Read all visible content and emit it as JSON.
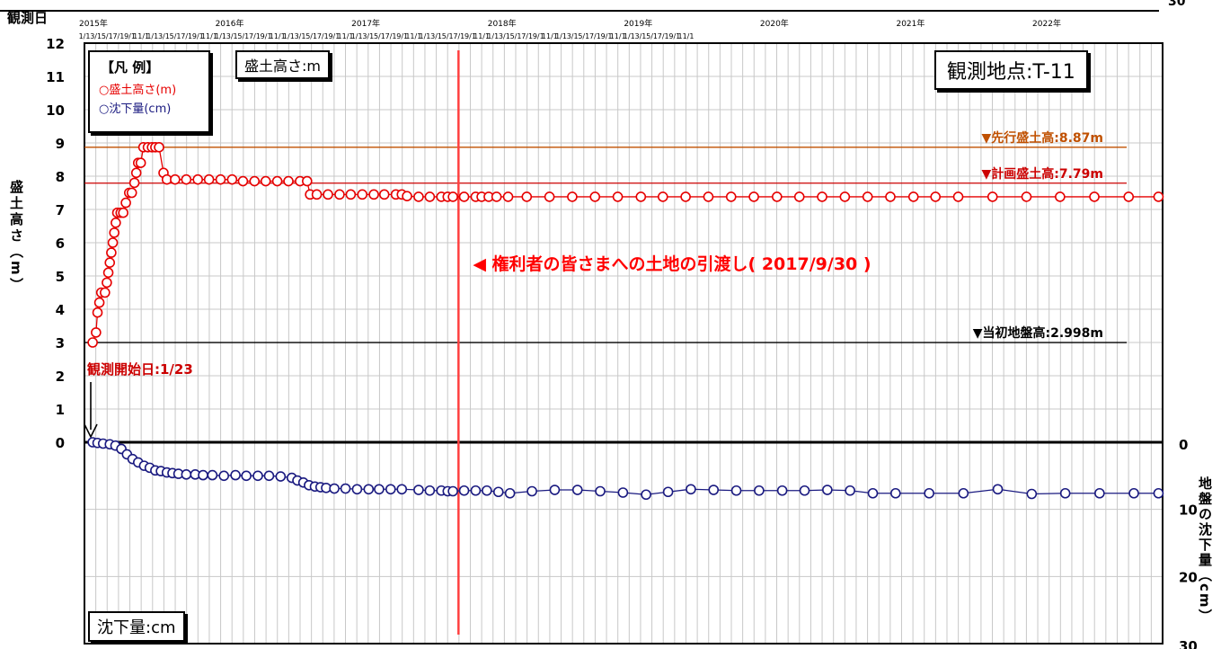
{
  "chart_data": {
    "type": "line",
    "top_axis": {
      "label": "観測日",
      "years": [
        "2015年",
        "2016年",
        "2017年",
        "2018年",
        "2019年",
        "2020年",
        "2021年",
        "2022年"
      ],
      "month_ticks": "1/1 3/1 5/1 7/1 9/1 11/1 1/1 3/1 5/1 7/1 9/1 11/1 1/1 3/1 5/1 7/1 9/1 11/1 1/1 3/1 5/1 7/1 9/1 11/1 1/1 3/1 5/1 7/1 9/1 11/1 1/1 3/1 5/1 7/1 9/1 11/1 1/1 3/1 5/1 7/1 9/1 11/1 1/1 3/1 5/1 7/1 9/1 11/1 1/1 3/1 5/1 7/1 9/1 11/1",
      "range": [
        "2015-01-01",
        "2022-12-01"
      ]
    },
    "left_axis": {
      "label": "盛土高さ（m）",
      "ylim": [
        0,
        12
      ],
      "ticks": [
        "0",
        "1",
        "2",
        "3",
        "4",
        "5",
        "6",
        "7",
        "8",
        "9",
        "10",
        "11",
        "12"
      ]
    },
    "right_axis": {
      "label": "地盤の沈下量（cm）",
      "ylim": [
        0,
        30
      ],
      "ticks": [
        "0",
        "10",
        "20",
        "30"
      ]
    },
    "grid": true,
    "legend": {
      "title": "【凡 例】",
      "position": "top-left",
      "items": [
        {
          "label": "○盛土高さ(m)",
          "color": "#e60000"
        },
        {
          "label": "○沈下量(cm)",
          "color": "#1a1a80"
        }
      ]
    },
    "panel_titles": {
      "fill": "盛土高さ:m",
      "settlement": "沈下量:cm"
    },
    "site": "観測地点:T-11",
    "reference_lines": [
      {
        "label": "▼先行盛土高:8.87m",
        "value": 8.87,
        "color": "#c05000"
      },
      {
        "label": "▼計画盛土高:7.79m",
        "value": 7.79,
        "color": "#cc0000"
      },
      {
        "label": "▼当初地盤高:2.998m",
        "value": 2.998,
        "color": "#000000"
      }
    ],
    "annotations": {
      "start": "観測開始日:1/23",
      "handover": "◀ 権利者の皆さまへの土地の引渡し( 2017/9/30 )",
      "handover_date": "2017-09-30"
    },
    "series": [
      {
        "name": "盛土高さ(m)",
        "color": "#e60000",
        "points": [
          [
            "2015-01-23",
            3.0
          ],
          [
            "2015-02-01",
            3.3
          ],
          [
            "2015-02-05",
            3.9
          ],
          [
            "2015-02-10",
            4.2
          ],
          [
            "2015-02-15",
            4.5
          ],
          [
            "2015-02-25",
            4.5
          ],
          [
            "2015-03-02",
            4.8
          ],
          [
            "2015-03-06",
            5.1
          ],
          [
            "2015-03-10",
            5.4
          ],
          [
            "2015-03-14",
            5.7
          ],
          [
            "2015-03-18",
            6.0
          ],
          [
            "2015-03-22",
            6.3
          ],
          [
            "2015-03-26",
            6.6
          ],
          [
            "2015-03-30",
            6.9
          ],
          [
            "2015-04-08",
            6.9
          ],
          [
            "2015-04-15",
            6.9
          ],
          [
            "2015-04-22",
            7.2
          ],
          [
            "2015-05-01",
            7.5
          ],
          [
            "2015-05-08",
            7.5
          ],
          [
            "2015-05-15",
            7.8
          ],
          [
            "2015-05-20",
            8.1
          ],
          [
            "2015-05-25",
            8.4
          ],
          [
            "2015-06-01",
            8.4
          ],
          [
            "2015-06-08",
            8.87
          ],
          [
            "2015-06-20",
            8.87
          ],
          [
            "2015-07-01",
            8.87
          ],
          [
            "2015-07-10",
            8.87
          ],
          [
            "2015-07-20",
            8.87
          ],
          [
            "2015-08-01",
            8.1
          ],
          [
            "2015-08-10",
            7.9
          ],
          [
            "2015-09-01",
            7.9
          ],
          [
            "2015-10-01",
            7.9
          ],
          [
            "2015-11-01",
            7.9
          ],
          [
            "2015-12-01",
            7.9
          ],
          [
            "2016-01-01",
            7.9
          ],
          [
            "2016-02-01",
            7.9
          ],
          [
            "2016-03-01",
            7.85
          ],
          [
            "2016-04-01",
            7.85
          ],
          [
            "2016-05-01",
            7.85
          ],
          [
            "2016-06-01",
            7.85
          ],
          [
            "2016-07-01",
            7.85
          ],
          [
            "2016-08-01",
            7.85
          ],
          [
            "2016-08-20",
            7.85
          ],
          [
            "2016-08-28",
            7.45
          ],
          [
            "2016-09-15",
            7.45
          ],
          [
            "2016-10-15",
            7.45
          ],
          [
            "2016-11-15",
            7.45
          ],
          [
            "2016-12-15",
            7.45
          ],
          [
            "2017-01-15",
            7.45
          ],
          [
            "2017-02-15",
            7.45
          ],
          [
            "2017-03-15",
            7.45
          ],
          [
            "2017-04-15",
            7.45
          ],
          [
            "2017-05-01",
            7.45
          ],
          [
            "2017-05-15",
            7.4
          ],
          [
            "2017-06-15",
            7.38
          ],
          [
            "2017-07-15",
            7.38
          ],
          [
            "2017-08-15",
            7.38
          ],
          [
            "2017-09-01",
            7.38
          ],
          [
            "2017-09-15",
            7.38
          ],
          [
            "2017-10-15",
            7.38
          ],
          [
            "2017-11-15",
            7.38
          ],
          [
            "2017-12-01",
            7.38
          ],
          [
            "2017-12-20",
            7.38
          ],
          [
            "2018-01-10",
            7.38
          ],
          [
            "2018-02-10",
            7.38
          ],
          [
            "2018-04-01",
            7.38
          ],
          [
            "2018-06-01",
            7.38
          ],
          [
            "2018-08-01",
            7.38
          ],
          [
            "2018-10-01",
            7.38
          ],
          [
            "2018-12-01",
            7.38
          ],
          [
            "2019-02-01",
            7.38
          ],
          [
            "2019-04-01",
            7.38
          ],
          [
            "2019-06-01",
            7.38
          ],
          [
            "2019-08-01",
            7.38
          ],
          [
            "2019-10-01",
            7.38
          ],
          [
            "2019-12-01",
            7.38
          ],
          [
            "2020-02-01",
            7.38
          ],
          [
            "2020-04-01",
            7.38
          ],
          [
            "2020-06-01",
            7.38
          ],
          [
            "2020-08-01",
            7.38
          ],
          [
            "2020-10-01",
            7.38
          ],
          [
            "2020-12-01",
            7.38
          ],
          [
            "2021-02-01",
            7.38
          ],
          [
            "2021-04-01",
            7.38
          ],
          [
            "2021-06-01",
            7.38
          ],
          [
            "2021-09-01",
            7.38
          ],
          [
            "2021-12-01",
            7.38
          ],
          [
            "2022-03-01",
            7.38
          ],
          [
            "2022-06-01",
            7.38
          ],
          [
            "2022-09-01",
            7.38
          ],
          [
            "2022-11-20",
            7.38
          ]
        ]
      },
      {
        "name": "沈下量(cm)",
        "color": "#1a1a80",
        "points": [
          [
            "2015-01-23",
            0.0
          ],
          [
            "2015-02-05",
            0.1
          ],
          [
            "2015-02-20",
            0.2
          ],
          [
            "2015-03-10",
            0.3
          ],
          [
            "2015-03-25",
            0.5
          ],
          [
            "2015-04-10",
            1.0
          ],
          [
            "2015-04-25",
            1.8
          ],
          [
            "2015-05-10",
            2.5
          ],
          [
            "2015-05-25",
            3.0
          ],
          [
            "2015-06-10",
            3.5
          ],
          [
            "2015-06-25",
            3.8
          ],
          [
            "2015-07-10",
            4.2
          ],
          [
            "2015-07-25",
            4.3
          ],
          [
            "2015-08-10",
            4.5
          ],
          [
            "2015-08-25",
            4.6
          ],
          [
            "2015-09-10",
            4.7
          ],
          [
            "2015-10-01",
            4.8
          ],
          [
            "2015-10-25",
            4.8
          ],
          [
            "2015-11-15",
            4.9
          ],
          [
            "2015-12-10",
            4.9
          ],
          [
            "2016-01-10",
            5.0
          ],
          [
            "2016-02-10",
            4.9
          ],
          [
            "2016-03-10",
            5.0
          ],
          [
            "2016-04-10",
            5.0
          ],
          [
            "2016-05-10",
            5.0
          ],
          [
            "2016-06-10",
            5.1
          ],
          [
            "2016-07-10",
            5.3
          ],
          [
            "2016-07-25",
            5.7
          ],
          [
            "2016-08-10",
            6.0
          ],
          [
            "2016-08-25",
            6.4
          ],
          [
            "2016-09-10",
            6.6
          ],
          [
            "2016-09-25",
            6.7
          ],
          [
            "2016-10-10",
            6.8
          ],
          [
            "2016-11-01",
            6.9
          ],
          [
            "2016-12-01",
            6.9
          ],
          [
            "2017-01-01",
            7.0
          ],
          [
            "2017-02-01",
            7.0
          ],
          [
            "2017-03-01",
            7.0
          ],
          [
            "2017-04-01",
            7.0
          ],
          [
            "2017-05-01",
            7.0
          ],
          [
            "2017-06-15",
            7.1
          ],
          [
            "2017-07-15",
            7.2
          ],
          [
            "2017-08-15",
            7.2
          ],
          [
            "2017-09-01",
            7.3
          ],
          [
            "2017-09-15",
            7.3
          ],
          [
            "2017-10-15",
            7.2
          ],
          [
            "2017-11-15",
            7.2
          ],
          [
            "2017-12-15",
            7.2
          ],
          [
            "2018-01-15",
            7.4
          ],
          [
            "2018-02-15",
            7.6
          ],
          [
            "2018-04-15",
            7.3
          ],
          [
            "2018-06-15",
            7.1
          ],
          [
            "2018-08-15",
            7.1
          ],
          [
            "2018-10-15",
            7.3
          ],
          [
            "2018-12-15",
            7.5
          ],
          [
            "2019-02-15",
            7.8
          ],
          [
            "2019-04-15",
            7.4
          ],
          [
            "2019-06-15",
            7.0
          ],
          [
            "2019-08-15",
            7.1
          ],
          [
            "2019-10-15",
            7.2
          ],
          [
            "2019-12-15",
            7.2
          ],
          [
            "2020-02-15",
            7.2
          ],
          [
            "2020-04-15",
            7.2
          ],
          [
            "2020-06-15",
            7.1
          ],
          [
            "2020-08-15",
            7.2
          ],
          [
            "2020-10-15",
            7.6
          ],
          [
            "2020-12-15",
            7.6
          ],
          [
            "2021-03-15",
            7.6
          ],
          [
            "2021-06-15",
            7.6
          ],
          [
            "2021-09-15",
            7.0
          ],
          [
            "2021-12-15",
            7.7
          ],
          [
            "2022-03-15",
            7.6
          ],
          [
            "2022-06-15",
            7.6
          ],
          [
            "2022-09-15",
            7.6
          ],
          [
            "2022-11-20",
            7.6
          ]
        ]
      }
    ]
  }
}
